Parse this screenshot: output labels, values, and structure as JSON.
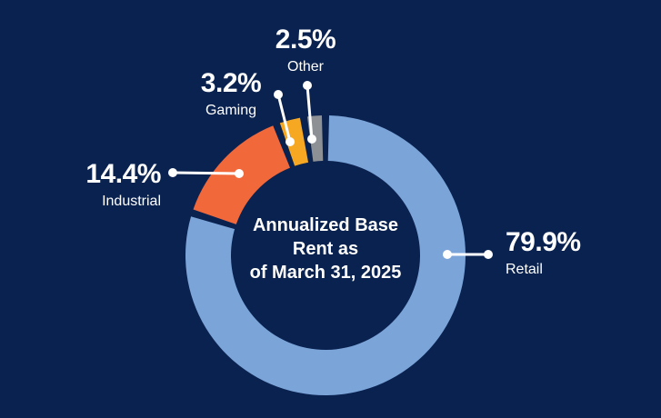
{
  "page": {
    "background": "#0a224f",
    "text_color": "#ffffff"
  },
  "chart_data": {
    "type": "pie",
    "variant": "donut",
    "title": "Annualized Base Rent as of March 31, 2025",
    "center_label": {
      "line1": "Annualized Base",
      "line2": "Rent as",
      "line3": "of March 31, 2025"
    },
    "start_angle_deg": 0,
    "direction": "clockwise",
    "legend_position": "callouts-with-leader-lines",
    "leader_color": "#ffffff",
    "segments": [
      {
        "label": "Retail",
        "value": 79.9,
        "pct_label": "79.9%",
        "color": "#7ba4d9"
      },
      {
        "label": "Industrial",
        "value": 14.4,
        "pct_label": "14.4%",
        "color": "#f1683b"
      },
      {
        "label": "Gaming",
        "value": 3.2,
        "pct_label": "3.2%",
        "color": "#f7a823"
      },
      {
        "label": "Other",
        "value": 2.5,
        "pct_label": "2.5%",
        "color": "#8d9196"
      }
    ]
  }
}
